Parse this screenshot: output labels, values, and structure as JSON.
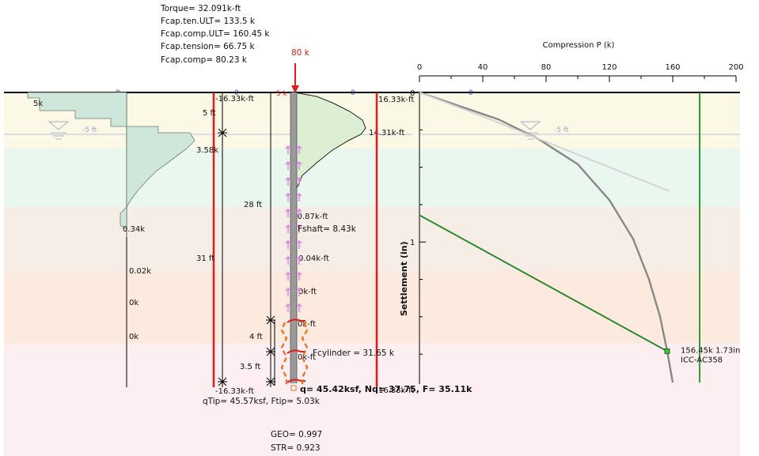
{
  "summary": {
    "torque": "Torque= 32.091k-ft",
    "fcap_ten_ult": "Fcap.ten.ULT= 133.5 k",
    "fcap_comp_ult": "Fcap.comp.ULT= 160.45 k",
    "fcap_tension": "Fcap.tension= 66.75 k",
    "fcap_comp": "Fcap.comp= 80.23 k"
  },
  "applied_load": {
    "label": "80 k",
    "top_force": "5 k"
  },
  "soil_layers": [
    {
      "color": "#fbf8e6"
    },
    {
      "color": "#eaf7ee"
    },
    {
      "color": "#f6eee6"
    },
    {
      "color": "#fbeadd"
    },
    {
      "color": "#fdeef1"
    }
  ],
  "water_table": {
    "left_label": "-5 ft",
    "right_label": "-5 ft"
  },
  "surface_markers": [
    "0",
    "0",
    "0",
    "0"
  ],
  "soil_profile": {
    "labels": {
      "top": "5k",
      "peak": "3.58k",
      "mid": "0.34k",
      "v1": "0.02k",
      "v2": "0k",
      "v3": "0k"
    }
  },
  "torque_line": {
    "top": "-16.33k-ft",
    "bottom": "-16.33k-ft"
  },
  "dimensions": {
    "d1": "5 ft",
    "d2": "28 ft",
    "d3": "31 ft",
    "d4": "4 ft",
    "d5": "3.5 ft"
  },
  "moment_diagram": {
    "top": "16.33k-ft",
    "peak": "14.31k-ft",
    "m1": "-0.87k-ft",
    "m2": "0.04k-ft",
    "m3": "0k-ft",
    "m4": "0k-ft",
    "m5": "0k-ft",
    "bottom": "16.33k-ft"
  },
  "shaft": {
    "fshaft": "Fshaft= 8.43k",
    "fcylinder": "Fcylinder = 31.65 k"
  },
  "tip": {
    "result": "q= 45.42ksf, Nq= 37.75, F= 35.11k",
    "qtip": "qTip= 45.57ksf, Ftip= 5.03k"
  },
  "ratios": {
    "geo": "GEO= 0.997",
    "str": "STR= 0.923"
  },
  "chart_data": {
    "type": "line",
    "title": "",
    "xlabel": "Compression P (k)",
    "ylabel": "Settlement (in)",
    "xlim": [
      0,
      200
    ],
    "xticks": [
      "0",
      "40",
      "80",
      "120",
      "160",
      "200"
    ],
    "yticks": [
      "0",
      "1"
    ],
    "series": [
      {
        "x": [
          0,
          25,
          50,
          75,
          100,
          120,
          135,
          145,
          152,
          156.5,
          160
        ],
        "y": [
          0,
          0.09,
          0.18,
          0.31,
          0.48,
          0.72,
          0.98,
          1.25,
          1.5,
          1.73,
          1.94
        ]
      },
      {
        "x": [
          0,
          40,
          80,
          120,
          158
        ],
        "y": [
          0,
          0.16,
          0.33,
          0.5,
          0.66
        ]
      },
      {
        "x": [
          0,
          156.5
        ],
        "y": [
          0.82,
          1.73
        ]
      },
      {
        "x": [
          177,
          177
        ],
        "y": [
          0,
          1.94
        ]
      }
    ],
    "colors": [
      "#888888",
      "#d4d4d4",
      "#2c8a2c",
      "#2ca02c"
    ],
    "annotation": {
      "x": 156.5,
      "y": 1.73,
      "line1": "156.45k 1.73in",
      "line2": "ICC-AC358"
    }
  }
}
